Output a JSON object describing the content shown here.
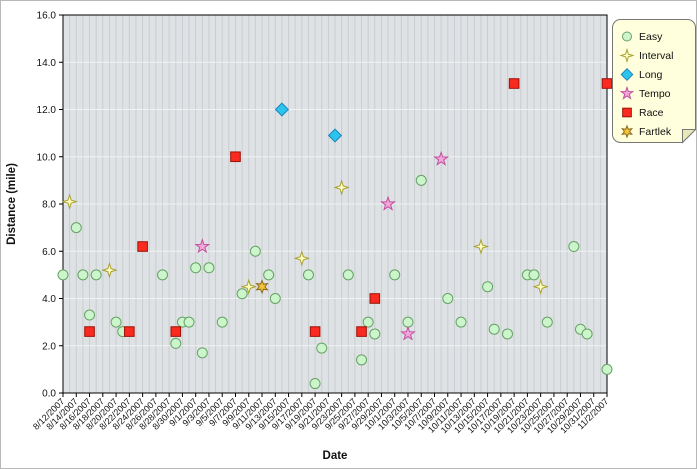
{
  "chart_data": {
    "type": "scatter",
    "title": "",
    "xlabel": "Date",
    "ylabel": "Distance (mile)",
    "ylim": [
      0,
      16
    ],
    "y_tick_labels": [
      "0.0",
      "2.0",
      "4.0",
      "6.0",
      "8.0",
      "10.0",
      "12.0",
      "14.0",
      "16.0"
    ],
    "x_start": "8/12/2007",
    "x_end": "11/2/2007",
    "x_tick_labels": [
      "8/12/2007",
      "8/14/2007",
      "8/16/2007",
      "8/18/2007",
      "8/20/2007",
      "8/22/2007",
      "8/24/2007",
      "8/26/2007",
      "8/28/2007",
      "8/30/2007",
      "9/1/2007",
      "9/3/2007",
      "9/5/2007",
      "9/7/2007",
      "9/9/2007",
      "9/11/2007",
      "9/13/2007",
      "9/15/2007",
      "9/17/2007",
      "9/19/2007",
      "9/21/2007",
      "9/23/2007",
      "9/25/2007",
      "9/27/2007",
      "9/29/2007",
      "10/1/2007",
      "10/3/2007",
      "10/5/2007",
      "10/7/2007",
      "10/9/2007",
      "10/11/2007",
      "10/13/2007",
      "10/15/2007",
      "10/17/2007",
      "10/19/2007",
      "10/21/2007",
      "10/23/2007",
      "10/25/2007",
      "10/27/2007",
      "10/29/2007",
      "10/31/2007",
      "11/2/2007"
    ],
    "grid": {
      "vertical": "daily",
      "horizontal": "every 2 miles"
    },
    "legend_position": "outside-top-right",
    "colors": {
      "plot_background": "#dfe2e4",
      "vertical_gridline": "#c8cdd1",
      "horizontal_gridline": "#eff1f2",
      "axis_frame": "#000000",
      "legend_background": "#ffffdd",
      "legend_border": "#777777",
      "legend_fold": "#e9e9b8"
    },
    "series": [
      {
        "name": "Easy",
        "marker": "circle",
        "fill": "#ccf5cc",
        "stroke": "#66a266",
        "points": [
          [
            "8/12/2007",
            5.0
          ],
          [
            "8/14/2007",
            7.0
          ],
          [
            "8/15/2007",
            5.0
          ],
          [
            "8/16/2007",
            3.3
          ],
          [
            "8/17/2007",
            5.0
          ],
          [
            "8/20/2007",
            3.0
          ],
          [
            "8/21/2007",
            2.6
          ],
          [
            "8/27/2007",
            5.0
          ],
          [
            "8/29/2007",
            2.1
          ],
          [
            "8/30/2007",
            3.0
          ],
          [
            "8/31/2007",
            3.0
          ],
          [
            "9/1/2007",
            5.3
          ],
          [
            "9/2/2007",
            1.7
          ],
          [
            "9/3/2007",
            5.3
          ],
          [
            "9/5/2007",
            3.0
          ],
          [
            "9/8/2007",
            4.2
          ],
          [
            "9/10/2007",
            6.0
          ],
          [
            "9/12/2007",
            5.0
          ],
          [
            "9/13/2007",
            4.0
          ],
          [
            "9/18/2007",
            5.0
          ],
          [
            "9/19/2007",
            0.4
          ],
          [
            "9/20/2007",
            1.9
          ],
          [
            "9/24/2007",
            5.0
          ],
          [
            "9/26/2007",
            1.4
          ],
          [
            "9/27/2007",
            3.0
          ],
          [
            "9/28/2007",
            2.5
          ],
          [
            "10/1/2007",
            5.0
          ],
          [
            "10/3/2007",
            3.0
          ],
          [
            "10/5/2007",
            9.0
          ],
          [
            "10/9/2007",
            4.0
          ],
          [
            "10/11/2007",
            3.0
          ],
          [
            "10/15/2007",
            4.5
          ],
          [
            "10/16/2007",
            2.7
          ],
          [
            "10/18/2007",
            2.5
          ],
          [
            "10/21/2007",
            5.0
          ],
          [
            "10/22/2007",
            5.0
          ],
          [
            "10/24/2007",
            3.0
          ],
          [
            "10/28/2007",
            6.2
          ],
          [
            "10/29/2007",
            2.7
          ],
          [
            "10/30/2007",
            2.5
          ],
          [
            "11/2/2007",
            1.0
          ]
        ]
      },
      {
        "name": "Interval",
        "marker": "star4",
        "fill": "#ffffc2",
        "stroke": "#a8a032",
        "points": [
          [
            "8/13/2007",
            8.1
          ],
          [
            "8/19/2007",
            5.2
          ],
          [
            "9/9/2007",
            4.5
          ],
          [
            "9/17/2007",
            5.7
          ],
          [
            "9/23/2007",
            8.7
          ],
          [
            "10/14/2007",
            6.2
          ],
          [
            "10/23/2007",
            4.5
          ]
        ]
      },
      {
        "name": "Long",
        "marker": "diamond",
        "fill": "#2cc4ef",
        "stroke": "#1d88b8",
        "points": [
          [
            "9/14/2007",
            12.0
          ],
          [
            "9/22/2007",
            10.9
          ]
        ]
      },
      {
        "name": "Tempo",
        "marker": "star5",
        "fill": "#f2a6da",
        "stroke": "#c0509e",
        "points": [
          [
            "9/2/2007",
            6.2
          ],
          [
            "9/30/2007",
            8.0
          ],
          [
            "10/3/2007",
            2.5
          ],
          [
            "10/8/2007",
            9.9
          ]
        ]
      },
      {
        "name": "Race",
        "marker": "square",
        "fill": "#fb2a21",
        "stroke": "#9c1006",
        "points": [
          [
            "8/16/2007",
            2.6
          ],
          [
            "8/22/2007",
            2.6
          ],
          [
            "8/24/2007",
            6.2
          ],
          [
            "8/29/2007",
            2.6
          ],
          [
            "9/7/2007",
            10.0
          ],
          [
            "9/19/2007",
            2.6
          ],
          [
            "9/26/2007",
            2.6
          ],
          [
            "9/28/2007",
            4.0
          ],
          [
            "10/19/2007",
            13.1
          ],
          [
            "11/2/2007",
            13.1
          ]
        ]
      },
      {
        "name": "Fartlek",
        "marker": "star6",
        "fill": "#f5c338",
        "stroke": "#8a6a1c",
        "points": [
          [
            "9/11/2007",
            4.5
          ]
        ]
      }
    ]
  }
}
